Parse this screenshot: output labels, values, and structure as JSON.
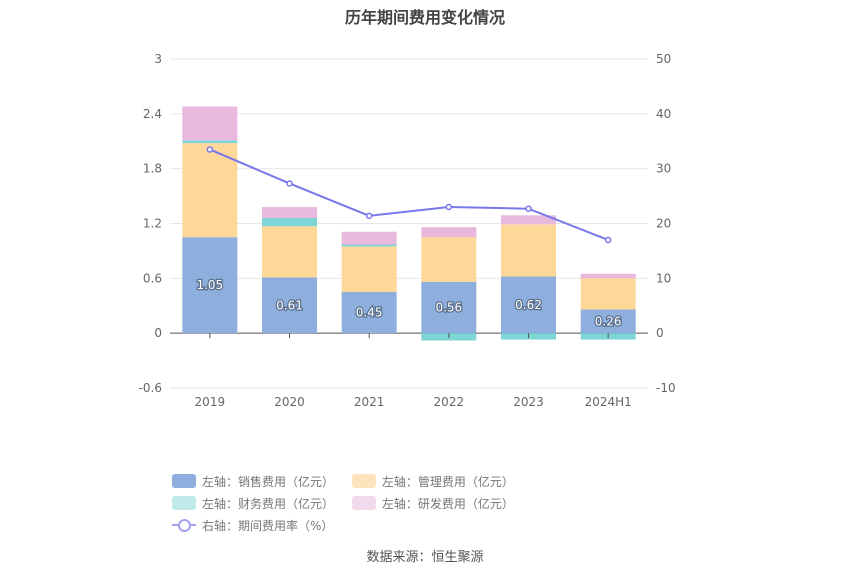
{
  "chart_data": {
    "type": "bar",
    "title": "历年期间费用变化情况",
    "categories": [
      "2019",
      "2020",
      "2021",
      "2022",
      "2023",
      "2024H1"
    ],
    "stacked": true,
    "left_axis": {
      "ylim": [
        -0.6,
        3
      ],
      "ticks": [
        "-0.6",
        "0",
        "0.6",
        "1.2",
        "1.8",
        "2.4",
        "3"
      ]
    },
    "right_axis": {
      "ylim": [
        -10,
        50
      ],
      "ticks": [
        "-10",
        "0",
        "10",
        "20",
        "30",
        "40",
        "50"
      ]
    },
    "grid": true,
    "legend_position": "bottom",
    "series": [
      {
        "name": "左轴：销售费用（亿元）",
        "axis": "left",
        "type": "bar",
        "color": "#8eaedd",
        "values": [
          1.05,
          0.61,
          0.45,
          0.56,
          0.62,
          0.26
        ],
        "labels": [
          "1.05",
          "0.61",
          "0.45",
          "0.56",
          "0.62",
          "0.26"
        ]
      },
      {
        "name": "左轴：管理费用（亿元）",
        "axis": "left",
        "type": "bar",
        "color": "#fdd898",
        "values": [
          1.03,
          0.56,
          0.5,
          0.49,
          0.57,
          0.34
        ]
      },
      {
        "name": "左轴：财务费用（亿元）",
        "axis": "left",
        "type": "bar",
        "color": "#7dd5d5",
        "values": [
          0.03,
          0.09,
          0.02,
          -0.08,
          -0.07,
          -0.07
        ]
      },
      {
        "name": "左轴：研发费用（亿元）",
        "axis": "left",
        "type": "bar",
        "color": "#e8b9dc",
        "values": [
          0.37,
          0.12,
          0.14,
          0.11,
          0.1,
          0.05
        ]
      },
      {
        "name": "右轴：期间费用率（%）",
        "axis": "right",
        "type": "line",
        "color": "#7777ea",
        "values": [
          33.5,
          27.3,
          21.4,
          23.0,
          22.7,
          17.0
        ]
      }
    ]
  },
  "legend": {
    "items": [
      {
        "label": "左轴：销售费用（亿元）",
        "color": "#8eaedd",
        "kind": "bar"
      },
      {
        "label": "左轴：管理费用（亿元）",
        "color": "#fde4bd",
        "kind": "bar"
      },
      {
        "label": "左轴：财务费用（亿元）",
        "color": "#bfe9e9",
        "kind": "bar"
      },
      {
        "label": "左轴：研发费用（亿元）",
        "color": "#f3d9ec",
        "kind": "bar"
      },
      {
        "label": "右轴：期间费用率（%）",
        "color": "#a3a3f0",
        "kind": "line"
      }
    ]
  },
  "source": "数据来源：恒生聚源"
}
